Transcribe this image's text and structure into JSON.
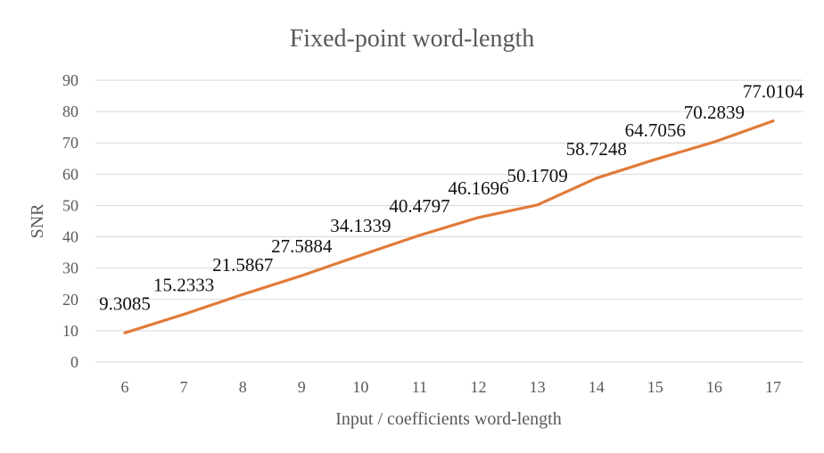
{
  "chart_data": {
    "type": "line",
    "title": "Fixed-point word-length",
    "xlabel": "Input / coefficients word-length",
    "ylabel": "SNR",
    "categories": [
      "6",
      "7",
      "8",
      "9",
      "10",
      "11",
      "12",
      "13",
      "14",
      "15",
      "16",
      "17"
    ],
    "series": [
      {
        "values": [
          9.3085,
          15.2333,
          21.5867,
          27.5884,
          34.1339,
          40.4797,
          46.1696,
          50.1709,
          58.7248,
          64.7056,
          70.2839,
          77.0104
        ],
        "labels": [
          "9.3085",
          "15.2333",
          "21.5867",
          "27.5884",
          "34.1339",
          "40.4797",
          "46.1696",
          "50.1709",
          "58.7248",
          "64.7056",
          "70.2839",
          "77.0104"
        ],
        "color": "#e07b39"
      }
    ],
    "ylim": [
      0,
      90
    ],
    "yticks": [
      0,
      10,
      20,
      30,
      40,
      50,
      60,
      70,
      80,
      90
    ],
    "grid": true,
    "legend": "none"
  }
}
